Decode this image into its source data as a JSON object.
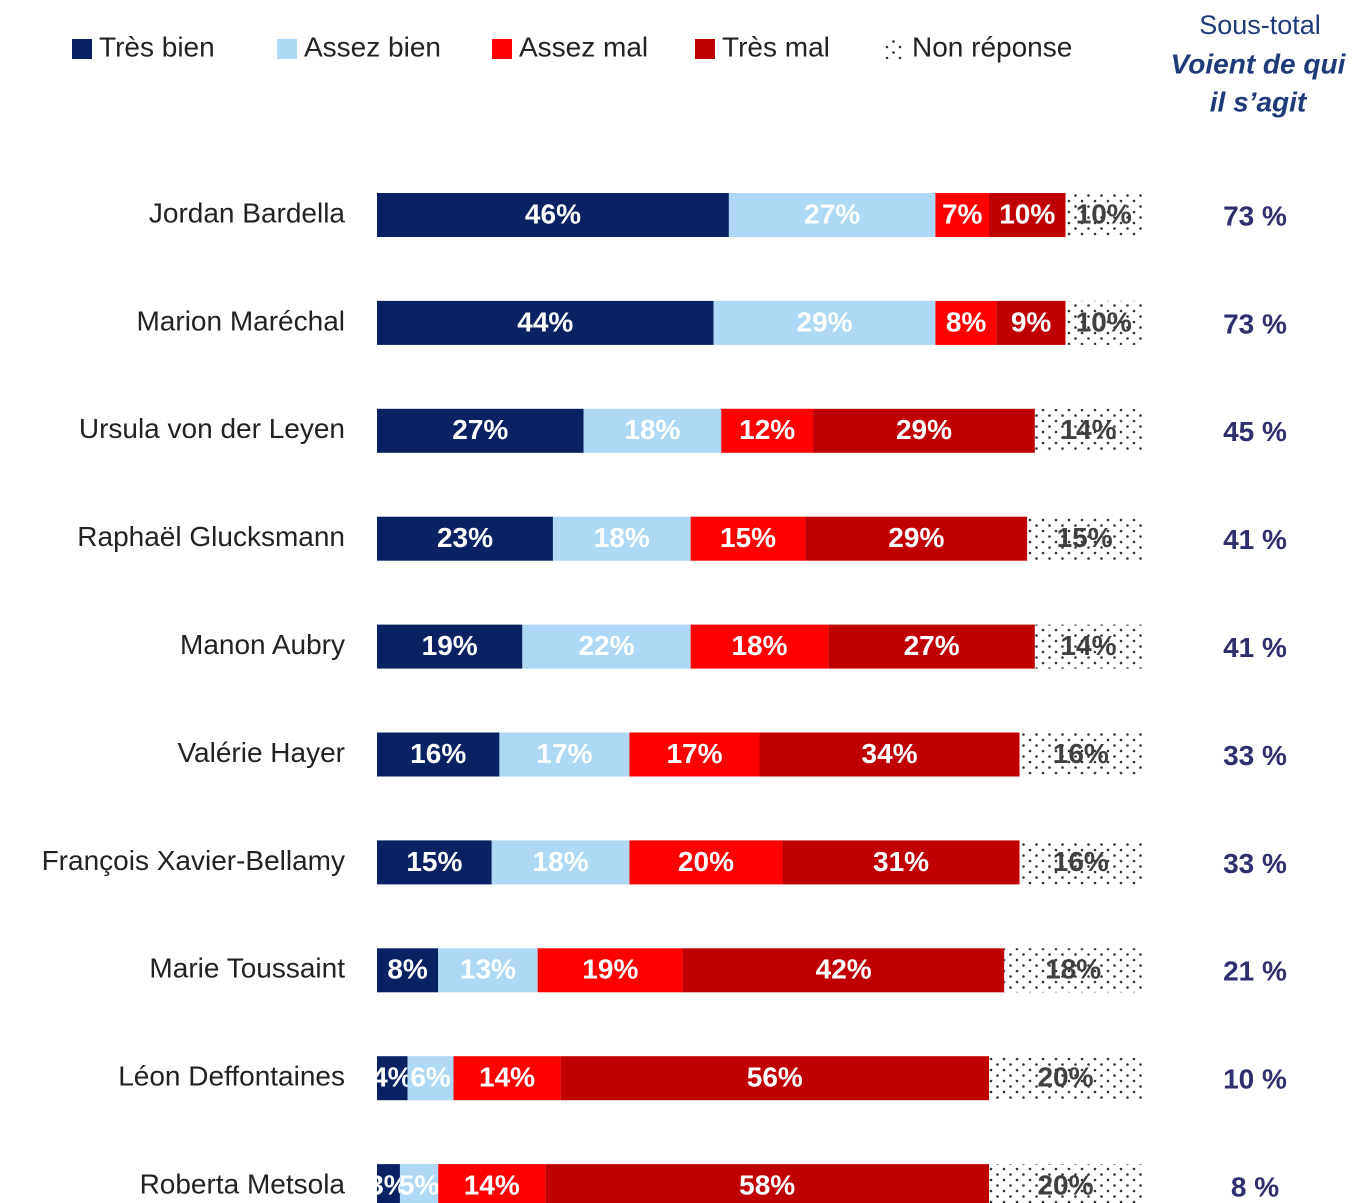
{
  "chart_data": {
    "type": "stacked-bar-horizontal",
    "categories": [
      "Jordan Bardella",
      "Marion Maréchal",
      "Ursula von der Leyen",
      "Raphaël Glucksmann",
      "Manon Aubry",
      "Valérie Hayer",
      "François Xavier-Bellamy",
      "Marie Toussaint",
      "Léon Deffontaines",
      "Roberta Metsola"
    ],
    "xlim": [
      0,
      100
    ],
    "legend": "top",
    "series": [
      {
        "name": "Très bien",
        "color": "#0a2164",
        "label_color": "#ffffff",
        "values": [
          46,
          44,
          27,
          23,
          19,
          16,
          15,
          8,
          4,
          3
        ],
        "value_labels": [
          "46%",
          "44%",
          "27%",
          "23%",
          "19%",
          "16%",
          "15%",
          "8%",
          "4%",
          "3%"
        ]
      },
      {
        "name": "Assez bien",
        "color": "#aed8f5",
        "label_color": "#ffffff",
        "values": [
          27,
          29,
          18,
          18,
          22,
          17,
          18,
          13,
          6,
          5
        ],
        "value_labels": [
          "27%",
          "29%",
          "18%",
          "18%",
          "22%",
          "17%",
          "18%",
          "13%",
          "6%",
          "5%"
        ]
      },
      {
        "name": "Assez mal",
        "color": "#ff0000",
        "label_color": "#ffffff",
        "values": [
          7,
          8,
          12,
          15,
          18,
          17,
          20,
          19,
          14,
          14
        ],
        "value_labels": [
          "7%",
          "8%",
          "12%",
          "15%",
          "18%",
          "17%",
          "20%",
          "19%",
          "14%",
          "14%"
        ]
      },
      {
        "name": "Très mal",
        "color": "#c00000",
        "label_color": "#ffffff",
        "values": [
          10,
          9,
          29,
          29,
          27,
          34,
          31,
          42,
          56,
          58
        ],
        "value_labels": [
          "10%",
          "9%",
          "29%",
          "29%",
          "27%",
          "34%",
          "31%",
          "42%",
          "56%",
          "58%"
        ]
      },
      {
        "name": "Non réponse",
        "color": "#ffffff",
        "pattern": "dotted",
        "label_color": "#404040",
        "values": [
          10,
          10,
          14,
          15,
          14,
          16,
          16,
          18,
          20,
          20
        ],
        "value_labels": [
          "10%",
          "10%",
          "14%",
          "15%",
          "14%",
          "16%",
          "16%",
          "18%",
          "20%",
          "20%"
        ]
      }
    ],
    "subtotal": {
      "title": "Sous-total",
      "subtitle": [
        "Voient de qui",
        "il s’agit"
      ],
      "values": [
        73,
        73,
        45,
        41,
        41,
        33,
        33,
        21,
        10,
        8
      ],
      "value_labels": [
        "73 %",
        "73 %",
        "45 %",
        "41 %",
        "41 %",
        "33 %",
        "33 %",
        "21 %",
        "10 %",
        "8 %"
      ]
    }
  }
}
